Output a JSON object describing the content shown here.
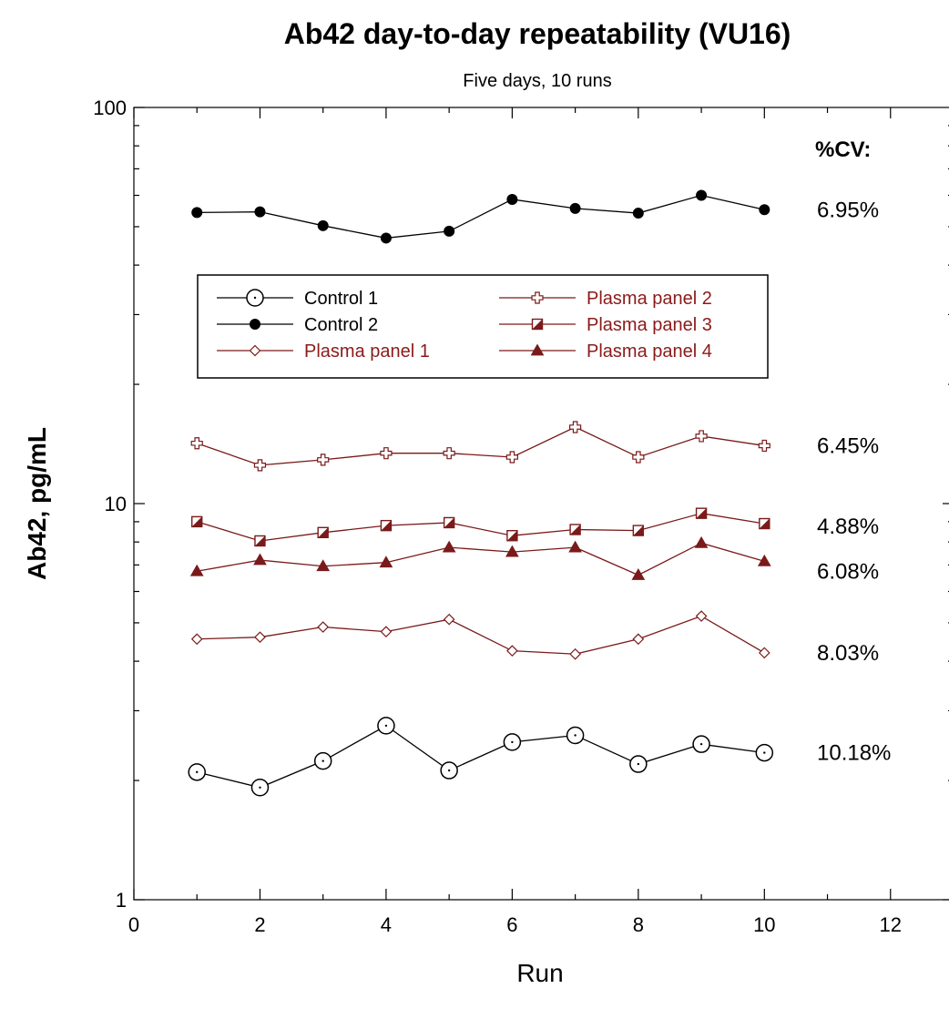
{
  "chart_data": {
    "type": "line",
    "title": "Ab42 day-to-day repeatability (VU16)",
    "subtitle": "Five days, 10 runs",
    "xlabel": "Run",
    "ylabel": "Ab42, pg/mL",
    "xlim": [
      0,
      13
    ],
    "ylim": [
      1,
      100
    ],
    "yscale": "log",
    "x_ticks": [
      0,
      2,
      4,
      6,
      8,
      10,
      12
    ],
    "y_ticks": [
      1,
      10,
      100
    ],
    "grid": false,
    "legend_position": "upper-left inside plot",
    "cv_header": "%CV:",
    "x": [
      1,
      2,
      3,
      4,
      5,
      6,
      7,
      8,
      9,
      10
    ],
    "series": [
      {
        "name": "Control 1",
        "marker": "circle-open-dot",
        "color": "#000000",
        "text_color": "#000000",
        "cv": "10.18%",
        "values": [
          2.1,
          1.92,
          2.24,
          2.75,
          2.12,
          2.5,
          2.6,
          2.2,
          2.47,
          2.35
        ]
      },
      {
        "name": "Control 2",
        "marker": "circle-filled",
        "color": "#000000",
        "text_color": "#000000",
        "cv": "6.95%",
        "values": [
          54.3,
          54.5,
          50.3,
          46.8,
          48.7,
          58.6,
          55.6,
          54.1,
          60.0,
          55.2
        ]
      },
      {
        "name": "Plasma panel 1",
        "marker": "diamond-open",
        "color": "#7a1a1a",
        "text_color": "#8b1a1a",
        "cv": "8.03%",
        "values": [
          4.55,
          4.6,
          4.88,
          4.75,
          5.1,
          4.25,
          4.17,
          4.55,
          5.2,
          4.2
        ]
      },
      {
        "name": "Plasma panel 2",
        "marker": "plus-open",
        "color": "#7a1a1a",
        "text_color": "#8b1a1a",
        "cv": "6.45%",
        "values": [
          14.2,
          12.5,
          12.9,
          13.4,
          13.4,
          13.1,
          15.6,
          13.1,
          14.8,
          14.0
        ]
      },
      {
        "name": "Plasma panel 3",
        "marker": "square-half",
        "color": "#7a1a1a",
        "text_color": "#8b1a1a",
        "cv": "4.88%",
        "values": [
          9.0,
          8.05,
          8.45,
          8.8,
          8.95,
          8.3,
          8.6,
          8.55,
          9.45,
          8.9
        ]
      },
      {
        "name": "Plasma panel 4",
        "marker": "triangle-filled",
        "color": "#7a1a1a",
        "text_color": "#8b1a1a",
        "cv": "6.08%",
        "values": [
          6.75,
          7.2,
          6.95,
          7.1,
          7.75,
          7.55,
          7.75,
          6.6,
          7.95,
          7.15
        ]
      }
    ]
  }
}
